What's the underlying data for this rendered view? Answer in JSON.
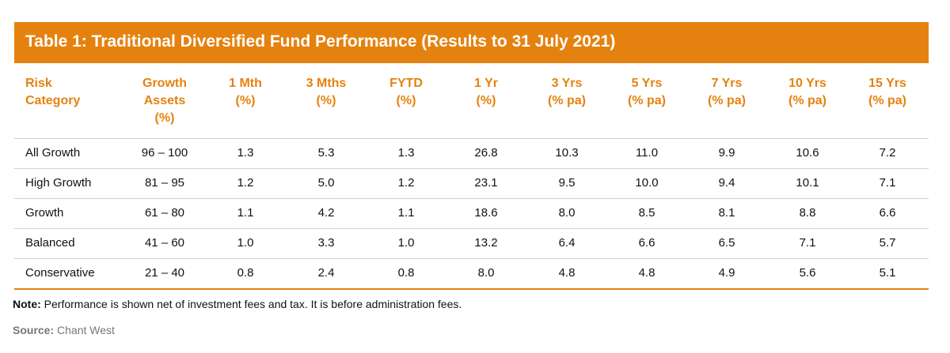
{
  "table": {
    "title": "Table 1: Traditional Diversified Fund Performance (Results to 31 July 2021)",
    "headers": [
      [
        "Risk",
        "Category"
      ],
      [
        "Growth",
        "Assets",
        "(%)"
      ],
      [
        "1 Mth",
        "(%)"
      ],
      [
        "3 Mths",
        "(%)"
      ],
      [
        "FYTD",
        "(%)"
      ],
      [
        "1 Yr",
        "(%)"
      ],
      [
        "3 Yrs",
        "(% pa)"
      ],
      [
        "5 Yrs",
        "(% pa)"
      ],
      [
        "7 Yrs",
        "(% pa)"
      ],
      [
        "10 Yrs",
        "(% pa)"
      ],
      [
        "15 Yrs",
        "(% pa)"
      ]
    ],
    "rows": [
      [
        "All Growth",
        "96 – 100",
        "1.3",
        "5.3",
        "1.3",
        "26.8",
        "10.3",
        "11.0",
        "9.9",
        "10.6",
        "7.2"
      ],
      [
        "High Growth",
        "81 – 95",
        "1.2",
        "5.0",
        "1.2",
        "23.1",
        "9.5",
        "10.0",
        "9.4",
        "10.1",
        "7.1"
      ],
      [
        "Growth",
        "61 – 80",
        "1.1",
        "4.2",
        "1.1",
        "18.6",
        "8.0",
        "8.5",
        "8.1",
        "8.8",
        "6.6"
      ],
      [
        "Balanced",
        "41 – 60",
        "1.0",
        "3.3",
        "1.0",
        "13.2",
        "6.4",
        "6.6",
        "6.5",
        "7.1",
        "5.7"
      ],
      [
        "Conservative",
        "21 – 40",
        "0.8",
        "2.4",
        "0.8",
        "8.0",
        "4.8",
        "4.8",
        "4.9",
        "5.6",
        "5.1"
      ]
    ]
  },
  "note": {
    "label": "Note:",
    "text": "Performance is shown net of investment fees and tax. It is before administration fees."
  },
  "source": {
    "label": "Source:",
    "text": "Chant West"
  }
}
